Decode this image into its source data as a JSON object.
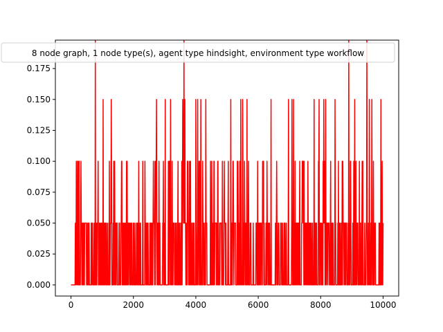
{
  "chart_data": {
    "type": "line",
    "title": "",
    "xlabel": "",
    "ylabel": "",
    "xlim": [
      -500,
      10500
    ],
    "ylim": [
      -0.009,
      0.198
    ],
    "x_ticks": [
      0,
      2000,
      4000,
      6000,
      8000,
      10000
    ],
    "x_tick_labels": [
      "0",
      "2000",
      "4000",
      "6000",
      "8000",
      "10000"
    ],
    "y_ticks": [
      0.0,
      0.025,
      0.05,
      0.075,
      0.1,
      0.125,
      0.15,
      0.175
    ],
    "y_tick_labels": [
      "0.000",
      "0.025",
      "0.050",
      "0.075",
      "0.100",
      "0.125",
      "0.150",
      "0.175"
    ],
    "grid": false,
    "legend_position": "top",
    "series": [
      {
        "name": "8 node graph, 1 node type(s), agent type hindsight, environment type workflow",
        "color": "#ff0000",
        "x_range": [
          0,
          10000
        ],
        "value_levels": [
          0.0,
          0.05,
          0.1,
          0.15,
          0.2
        ],
        "spikes": [
          {
            "x": 780,
            "y": 0.2
          },
          {
            "x": 3620,
            "y": 0.2
          },
          {
            "x": 8900,
            "y": 0.2
          },
          {
            "x": 9480,
            "y": 0.2
          },
          {
            "x": 1030,
            "y": 0.15
          },
          {
            "x": 1290,
            "y": 0.15
          },
          {
            "x": 2740,
            "y": 0.15
          },
          {
            "x": 3020,
            "y": 0.15
          },
          {
            "x": 3190,
            "y": 0.15
          },
          {
            "x": 3580,
            "y": 0.15
          },
          {
            "x": 3650,
            "y": 0.15
          },
          {
            "x": 4000,
            "y": 0.15
          },
          {
            "x": 4060,
            "y": 0.15
          },
          {
            "x": 4160,
            "y": 0.15
          },
          {
            "x": 4320,
            "y": 0.15
          },
          {
            "x": 5120,
            "y": 0.15
          },
          {
            "x": 5440,
            "y": 0.15
          },
          {
            "x": 5500,
            "y": 0.15
          },
          {
            "x": 5640,
            "y": 0.15
          },
          {
            "x": 6410,
            "y": 0.15
          },
          {
            "x": 6970,
            "y": 0.15
          },
          {
            "x": 7080,
            "y": 0.15
          },
          {
            "x": 7130,
            "y": 0.15
          },
          {
            "x": 7790,
            "y": 0.15
          },
          {
            "x": 7950,
            "y": 0.15
          },
          {
            "x": 8100,
            "y": 0.15
          },
          {
            "x": 8160,
            "y": 0.15
          },
          {
            "x": 8460,
            "y": 0.15
          },
          {
            "x": 9090,
            "y": 0.15
          },
          {
            "x": 9560,
            "y": 0.15
          },
          {
            "x": 9640,
            "y": 0.15
          },
          {
            "x": 9930,
            "y": 0.15
          }
        ],
        "baseline_flat_until": 140
      }
    ]
  }
}
